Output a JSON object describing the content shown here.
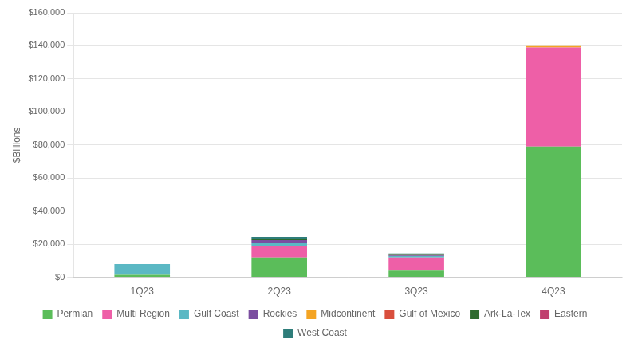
{
  "chart_data": {
    "type": "bar",
    "stacked": true,
    "categories": [
      "1Q23",
      "2Q23",
      "3Q23",
      "4Q23"
    ],
    "series": [
      {
        "name": "Permian",
        "color": "#5BBD5A",
        "values": [
          1500,
          12000,
          4000,
          79000
        ]
      },
      {
        "name": "Multi Region",
        "color": "#EE5FA7",
        "values": [
          0,
          7000,
          8000,
          60000
        ]
      },
      {
        "name": "Gulf Coast",
        "color": "#5BB8C4",
        "values": [
          6500,
          2000,
          800,
          0
        ]
      },
      {
        "name": "Rockies",
        "color": "#7B4EA0",
        "values": [
          0,
          1500,
          400,
          0
        ]
      },
      {
        "name": "Midcontinent",
        "color": "#F4A423",
        "values": [
          0,
          0,
          0,
          900
        ]
      },
      {
        "name": "Gulf of Mexico",
        "color": "#D94F3D",
        "values": [
          0,
          0,
          0,
          0
        ]
      },
      {
        "name": "Ark-La-Tex",
        "color": "#2D6A2D",
        "values": [
          0,
          600,
          300,
          0
        ]
      },
      {
        "name": "Eastern",
        "color": "#C0406E",
        "values": [
          0,
          400,
          200,
          0
        ]
      },
      {
        "name": "West Coast",
        "color": "#2E7D7A",
        "values": [
          0,
          900,
          700,
          0
        ]
      }
    ],
    "ylabel": "$Billions",
    "ylim": [
      0,
      160000
    ],
    "yticks": [
      {
        "value": 0,
        "label": "$0"
      },
      {
        "value": 20000,
        "label": "$20,000"
      },
      {
        "value": 40000,
        "label": "$40,000"
      },
      {
        "value": 60000,
        "label": "$60,000"
      },
      {
        "value": 80000,
        "label": "$80,000"
      },
      {
        "value": 100000,
        "label": "$100,000"
      },
      {
        "value": 120000,
        "label": "$120,000"
      },
      {
        "value": 140000,
        "label": "$140,000"
      },
      {
        "value": 160000,
        "label": "$160,000"
      }
    ],
    "grid": true,
    "legend": "bottom"
  }
}
